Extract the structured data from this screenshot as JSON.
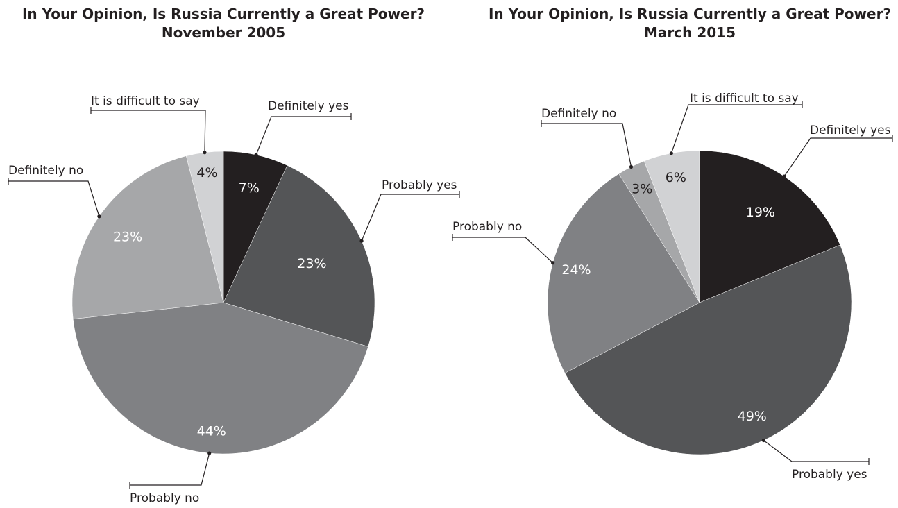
{
  "chart_data": [
    {
      "type": "pie",
      "title": "In Your Opinion, Is Russia Currently a Great Power?",
      "subtitle": "November 2005",
      "slices": [
        {
          "label": "Definitely yes",
          "value": 7,
          "value_label": "7%",
          "color": "#231f20",
          "text_color": "#ffffff"
        },
        {
          "label": "Probably yes",
          "value": 23,
          "value_label": "23%",
          "color": "#545557",
          "text_color": "#ffffff"
        },
        {
          "label": "Probably no",
          "value": 44,
          "value_label": "44%",
          "color": "#808184",
          "text_color": "#ffffff"
        },
        {
          "label": "Definitely no",
          "value": 23,
          "value_label": "23%",
          "color": "#a6a7a9",
          "text_color": "#ffffff"
        },
        {
          "label": "It is difficult to say",
          "value": 4,
          "value_label": "4%",
          "color": "#d1d2d4",
          "text_color": "#231f20"
        }
      ]
    },
    {
      "type": "pie",
      "title": "In Your Opinion, Is Russia Currently a Great Power?",
      "subtitle": "March 2015",
      "slices": [
        {
          "label": "Definitely yes",
          "value": 19,
          "value_label": "19%",
          "color": "#231f20",
          "text_color": "#ffffff"
        },
        {
          "label": "Probably yes",
          "value": 49,
          "value_label": "49%",
          "color": "#545557",
          "text_color": "#ffffff"
        },
        {
          "label": "Probably no",
          "value": 24,
          "value_label": "24%",
          "color": "#808184",
          "text_color": "#ffffff"
        },
        {
          "label": "Definitely no",
          "value": 3,
          "value_label": "3%",
          "color": "#a6a7a9",
          "text_color": "#231f20"
        },
        {
          "label": "It is difficult to say",
          "value": 6,
          "value_label": "6%",
          "color": "#d1d2d4",
          "text_color": "#231f20"
        }
      ]
    }
  ]
}
